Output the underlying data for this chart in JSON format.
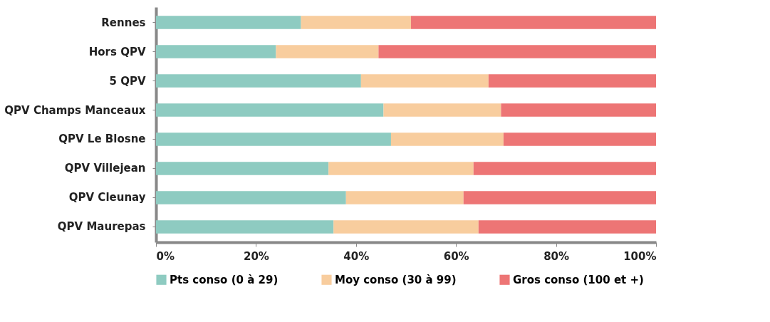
{
  "chart_data": {
    "type": "bar",
    "orientation": "horizontal",
    "stacked": true,
    "categories": [
      "Rennes",
      "Hors QPV",
      "5 QPV",
      "QPV Champs Manceaux",
      "QPV Le Blosne",
      "QPV Villejean",
      "QPV Cleunay",
      "QPV Maurepas"
    ],
    "series": [
      {
        "name": "Pts conso (0 à 29)",
        "color": "#8ecbc1",
        "values": [
          29,
          24,
          41,
          45.5,
          47,
          34.5,
          38,
          35.5
        ]
      },
      {
        "name": "Moy conso (30 à 99)",
        "color": "#f8cd9e",
        "values": [
          22,
          20.5,
          25.5,
          23.5,
          22.5,
          29,
          23.5,
          29
        ]
      },
      {
        "name": "Gros conso (100 et +)",
        "color": "#ed7575",
        "values": [
          49,
          55.5,
          33.5,
          31,
          30.5,
          36.5,
          38.5,
          35.5
        ]
      }
    ],
    "xlim": [
      0,
      100
    ],
    "xticks": [
      {
        "value": 0,
        "label": "0%"
      },
      {
        "value": 20,
        "label": "20%"
      },
      {
        "value": 40,
        "label": "40%"
      },
      {
        "value": 60,
        "label": "60%"
      },
      {
        "value": 80,
        "label": "80%"
      },
      {
        "value": 100,
        "label": "100%"
      }
    ],
    "grid": false,
    "legend": "bottom"
  }
}
